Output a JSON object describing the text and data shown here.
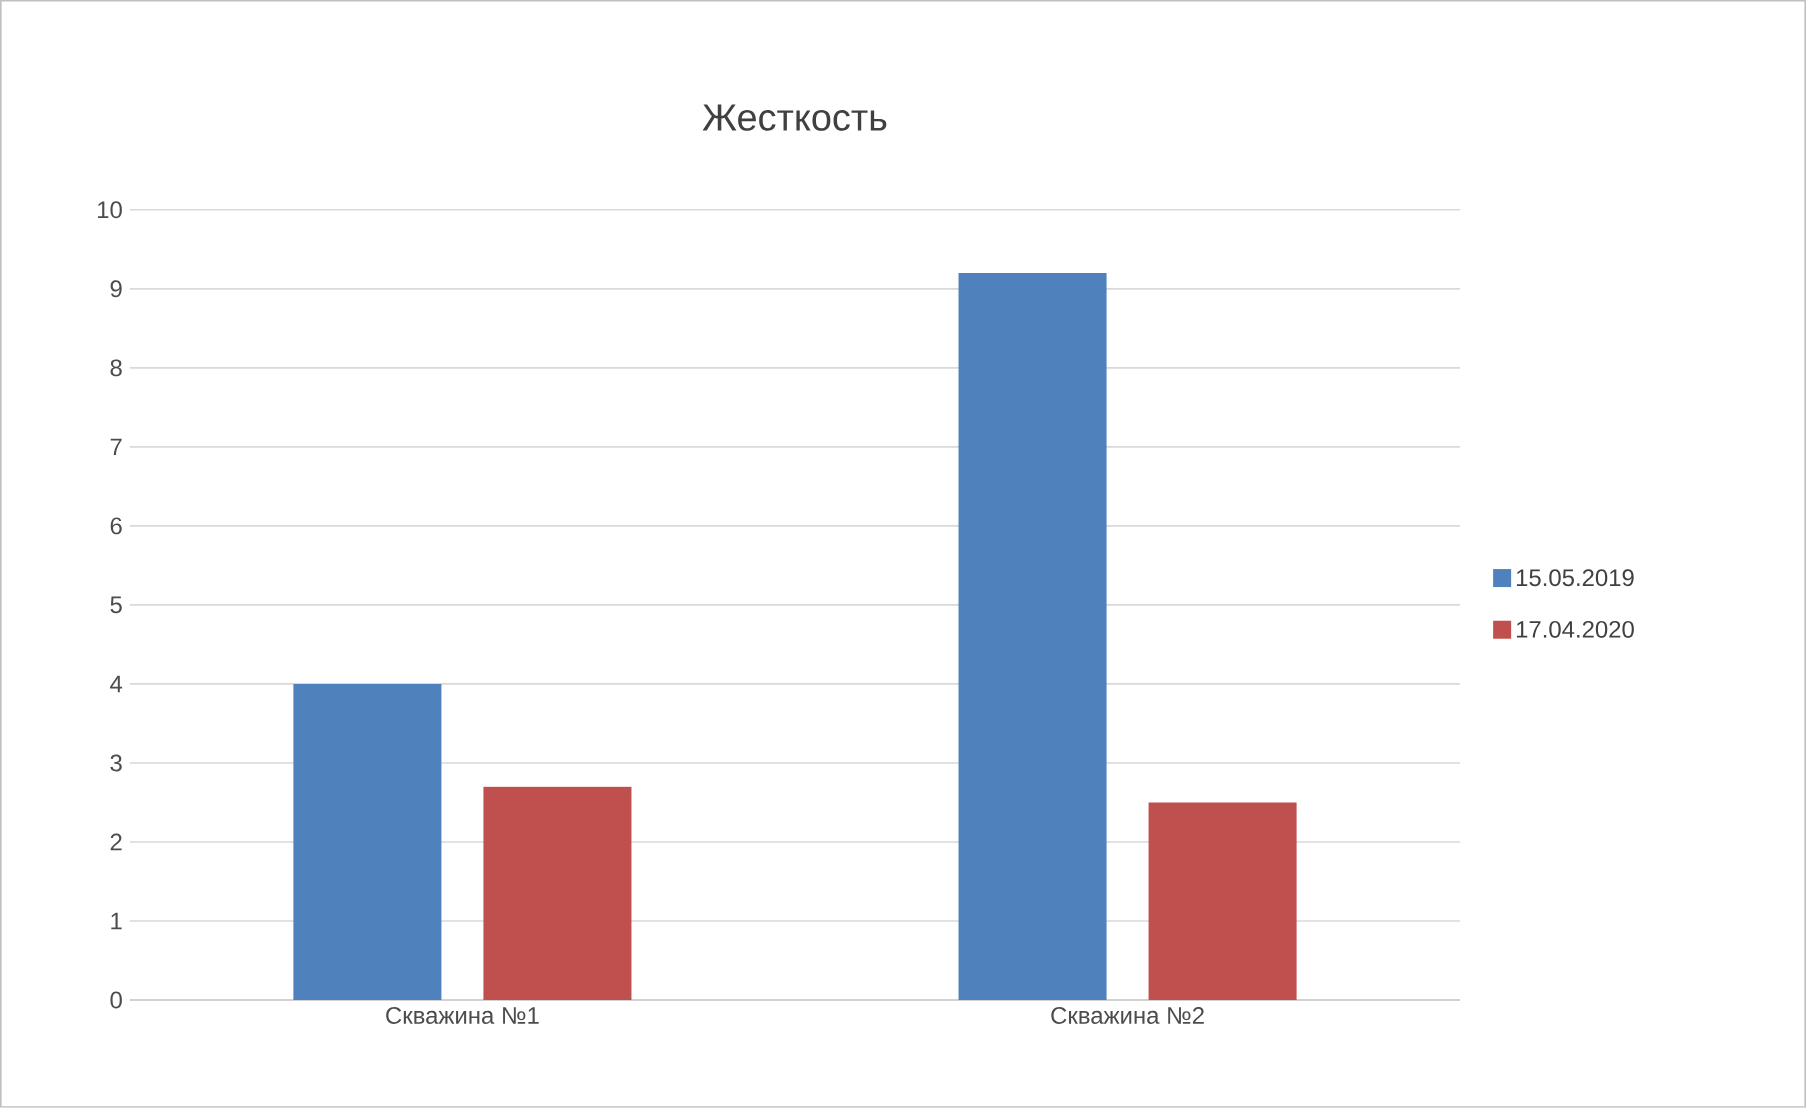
{
  "chart_data": {
    "type": "bar",
    "title": "Жесткость",
    "categories": [
      "Скважина №1",
      "Скважина №2"
    ],
    "series": [
      {
        "name": "15.05.2019",
        "color": "#4f81bd",
        "values": [
          4.0,
          9.2
        ]
      },
      {
        "name": "17.04.2020",
        "color": "#c0504d",
        "values": [
          2.7,
          2.5
        ]
      }
    ],
    "ylim": [
      0,
      10
    ],
    "yticks": [
      0,
      1,
      2,
      3,
      4,
      5,
      6,
      7,
      8,
      9,
      10
    ],
    "grid": "y",
    "legend": "right"
  }
}
